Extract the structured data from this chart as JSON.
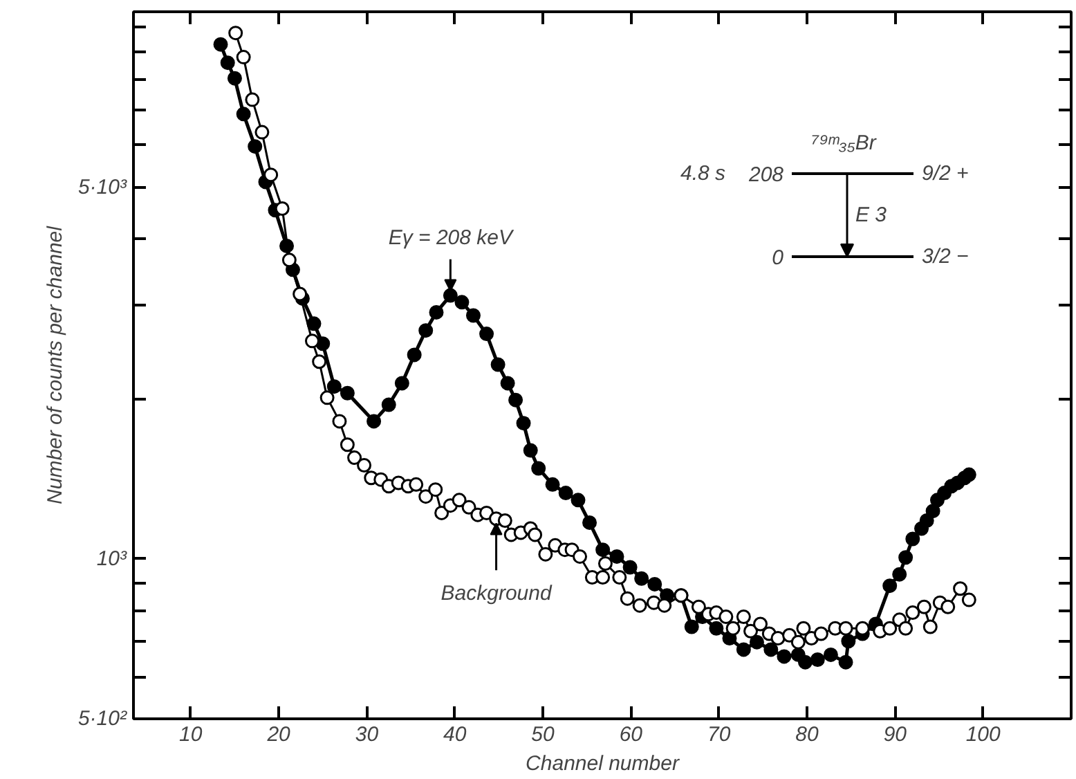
{
  "chart_data": {
    "type": "line",
    "xlabel": "Channel number",
    "ylabel": "Number of counts per channel",
    "log": "y",
    "grid": false,
    "marker": "circle",
    "line_style": "solid",
    "xlim": [
      3.5,
      110
    ],
    "ylim": [
      500,
      10700
    ],
    "xticks": [
      10,
      20,
      30,
      40,
      50,
      60,
      70,
      80,
      90,
      100
    ],
    "yticks": [
      {
        "value": 500,
        "label": "5·10²"
      },
      {
        "value": 600,
        "label": null
      },
      {
        "value": 700,
        "label": null
      },
      {
        "value": 800,
        "label": null
      },
      {
        "value": 900,
        "label": null
      },
      {
        "value": 1000,
        "label": "10³"
      },
      {
        "value": 2000,
        "label": null
      },
      {
        "value": 3000,
        "label": null
      },
      {
        "value": 4000,
        "label": null
      },
      {
        "value": 5000,
        "label": "5·10³"
      },
      {
        "value": 6000,
        "label": null
      },
      {
        "value": 7000,
        "label": null
      },
      {
        "value": 8000,
        "label": null
      },
      {
        "value": 9000,
        "label": null
      },
      {
        "value": 10000,
        "label": null
      }
    ],
    "series": [
      {
        "color": "#000000",
        "x": [
          13.4,
          14.2,
          15.0,
          16.0,
          17.3,
          18.5,
          19.6,
          20.9,
          21.6,
          22.7,
          24.0,
          25.0,
          26.3,
          27.8,
          30.8,
          32.5,
          34.0,
          35.4,
          36.7,
          37.9,
          39.5,
          40.8,
          42.1,
          43.6,
          44.9,
          46.0,
          46.9,
          47.8,
          48.6,
          49.5,
          51.1,
          52.6,
          54.0,
          55.3,
          56.8,
          58.4,
          59.9,
          61.2,
          62.7,
          64.1,
          65.7,
          66.9,
          68.1,
          69.7,
          71.2,
          72.8,
          74.3,
          75.9,
          77.4,
          79.0,
          79.8,
          81.2,
          82.7,
          84.4,
          84.7,
          86.3,
          87.8,
          89.4,
          90.5,
          91.2,
          92.0,
          93.0,
          93.6,
          94.3,
          94.8,
          95.6,
          96.4,
          97.1,
          97.9,
          98.4
        ],
        "values": [
          9290,
          8580,
          8020,
          6870,
          5970,
          5120,
          4530,
          3880,
          3500,
          3090,
          2770,
          2540,
          2110,
          2050,
          1815,
          1950,
          2140,
          2420,
          2690,
          2910,
          3130,
          3040,
          2870,
          2650,
          2320,
          2140,
          1990,
          1800,
          1600,
          1480,
          1380,
          1330,
          1290,
          1170,
          1040,
          1010,
          964,
          918,
          896,
          853,
          853,
          745,
          778,
          740,
          709,
          675,
          697,
          675,
          655,
          660,
          639,
          646,
          660,
          639,
          700,
          723,
          754,
          890,
          935,
          1006,
          1090,
          1140,
          1180,
          1230,
          1290,
          1330,
          1370,
          1390,
          1420,
          1440
        ]
      },
      {
        "color": "#000000",
        "x": [
          15.1,
          16.0,
          17.0,
          18.1,
          19.1,
          20.4,
          21.2,
          22.4,
          23.8,
          24.6,
          25.5,
          26.9,
          27.8,
          28.6,
          29.7,
          30.5,
          31.6,
          32.5,
          33.6,
          34.7,
          35.6,
          36.7,
          37.8,
          38.5,
          39.5,
          40.5,
          41.6,
          42.6,
          43.6,
          44.7,
          45.7,
          46.4,
          47.5,
          48.6,
          49.1,
          50.3,
          51.4,
          52.5,
          53.3,
          54.2,
          55.6,
          56.8,
          57.1,
          58.7,
          59.6,
          61.0,
          62.6,
          63.8,
          65.7,
          67.7,
          68.8,
          69.7,
          70.8,
          71.6,
          72.8,
          73.6,
          74.7,
          75.7,
          76.7,
          78.0,
          79.0,
          79.6,
          80.5,
          81.6,
          83.2,
          84.4,
          86.3,
          88.3,
          89.4,
          90.5,
          91.2,
          92.0,
          93.3,
          94.0,
          95.1,
          96.0,
          97.4,
          98.4
        ],
        "values": [
          9760,
          8790,
          7310,
          6350,
          5280,
          4560,
          3650,
          3150,
          2570,
          2350,
          2010,
          1815,
          1640,
          1550,
          1500,
          1420,
          1410,
          1370,
          1390,
          1370,
          1380,
          1310,
          1350,
          1220,
          1260,
          1290,
          1250,
          1210,
          1220,
          1190,
          1180,
          1110,
          1120,
          1140,
          1110,
          1020,
          1060,
          1040,
          1040,
          1010,
          923,
          923,
          980,
          923,
          842,
          817,
          827,
          817,
          853,
          812,
          787,
          792,
          778,
          740,
          778,
          731,
          754,
          723,
          709,
          718,
          697,
          740,
          709,
          723,
          740,
          740,
          740,
          731,
          740,
          768,
          740,
          792,
          812,
          745,
          827,
          812,
          879,
          837
        ]
      }
    ],
    "annotations": [
      {
        "text": "Eγ = 208 keV",
        "x": 39.5,
        "y": 3130
      },
      {
        "text": "Background",
        "x": 44.7,
        "y": 1190
      },
      "⁷⁹ᵐ₃₅Br",
      "4.8 s",
      "208",
      "9/2 +",
      "0",
      "3/2 −",
      "E 3"
    ]
  }
}
